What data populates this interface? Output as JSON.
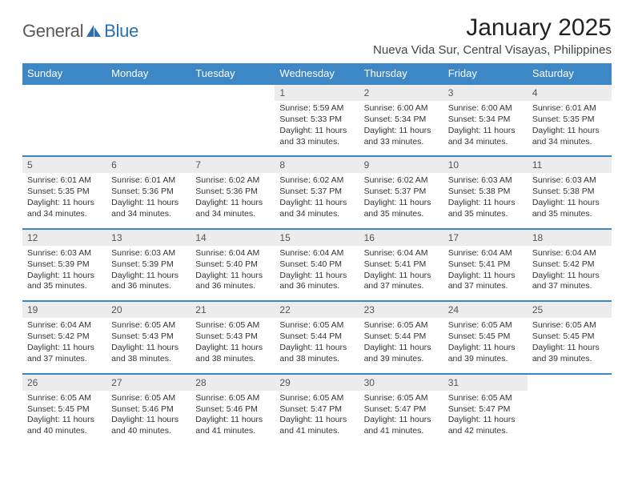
{
  "logo": {
    "word1": "General",
    "word2": "Blue",
    "color": "#2b6fb0"
  },
  "header": {
    "title": "January 2025",
    "subtitle": "Nueva Vida Sur, Central Visayas, Philippines"
  },
  "theme": {
    "header_bg": "#3d87c7",
    "header_text": "#ffffff",
    "row_sep": "#3d87c7",
    "daynum_bg": "#ececec",
    "body_text": "#333333"
  },
  "dayNames": [
    "Sunday",
    "Monday",
    "Tuesday",
    "Wednesday",
    "Thursday",
    "Friday",
    "Saturday"
  ],
  "table": {
    "font_size_body": 10.5,
    "font_size_header": 13,
    "font_size_daynum": 12
  },
  "weeks": [
    [
      {
        "empty": true
      },
      {
        "empty": true
      },
      {
        "empty": true
      },
      {
        "n": "1",
        "sunrise": "5:59 AM",
        "sunset": "5:33 PM",
        "daylight": "11 hours and 33 minutes."
      },
      {
        "n": "2",
        "sunrise": "6:00 AM",
        "sunset": "5:34 PM",
        "daylight": "11 hours and 33 minutes."
      },
      {
        "n": "3",
        "sunrise": "6:00 AM",
        "sunset": "5:34 PM",
        "daylight": "11 hours and 34 minutes."
      },
      {
        "n": "4",
        "sunrise": "6:01 AM",
        "sunset": "5:35 PM",
        "daylight": "11 hours and 34 minutes."
      }
    ],
    [
      {
        "n": "5",
        "sunrise": "6:01 AM",
        "sunset": "5:35 PM",
        "daylight": "11 hours and 34 minutes."
      },
      {
        "n": "6",
        "sunrise": "6:01 AM",
        "sunset": "5:36 PM",
        "daylight": "11 hours and 34 minutes."
      },
      {
        "n": "7",
        "sunrise": "6:02 AM",
        "sunset": "5:36 PM",
        "daylight": "11 hours and 34 minutes."
      },
      {
        "n": "8",
        "sunrise": "6:02 AM",
        "sunset": "5:37 PM",
        "daylight": "11 hours and 34 minutes."
      },
      {
        "n": "9",
        "sunrise": "6:02 AM",
        "sunset": "5:37 PM",
        "daylight": "11 hours and 35 minutes."
      },
      {
        "n": "10",
        "sunrise": "6:03 AM",
        "sunset": "5:38 PM",
        "daylight": "11 hours and 35 minutes."
      },
      {
        "n": "11",
        "sunrise": "6:03 AM",
        "sunset": "5:38 PM",
        "daylight": "11 hours and 35 minutes."
      }
    ],
    [
      {
        "n": "12",
        "sunrise": "6:03 AM",
        "sunset": "5:39 PM",
        "daylight": "11 hours and 35 minutes."
      },
      {
        "n": "13",
        "sunrise": "6:03 AM",
        "sunset": "5:39 PM",
        "daylight": "11 hours and 36 minutes."
      },
      {
        "n": "14",
        "sunrise": "6:04 AM",
        "sunset": "5:40 PM",
        "daylight": "11 hours and 36 minutes."
      },
      {
        "n": "15",
        "sunrise": "6:04 AM",
        "sunset": "5:40 PM",
        "daylight": "11 hours and 36 minutes."
      },
      {
        "n": "16",
        "sunrise": "6:04 AM",
        "sunset": "5:41 PM",
        "daylight": "11 hours and 37 minutes."
      },
      {
        "n": "17",
        "sunrise": "6:04 AM",
        "sunset": "5:41 PM",
        "daylight": "11 hours and 37 minutes."
      },
      {
        "n": "18",
        "sunrise": "6:04 AM",
        "sunset": "5:42 PM",
        "daylight": "11 hours and 37 minutes."
      }
    ],
    [
      {
        "n": "19",
        "sunrise": "6:04 AM",
        "sunset": "5:42 PM",
        "daylight": "11 hours and 37 minutes."
      },
      {
        "n": "20",
        "sunrise": "6:05 AM",
        "sunset": "5:43 PM",
        "daylight": "11 hours and 38 minutes."
      },
      {
        "n": "21",
        "sunrise": "6:05 AM",
        "sunset": "5:43 PM",
        "daylight": "11 hours and 38 minutes."
      },
      {
        "n": "22",
        "sunrise": "6:05 AM",
        "sunset": "5:44 PM",
        "daylight": "11 hours and 38 minutes."
      },
      {
        "n": "23",
        "sunrise": "6:05 AM",
        "sunset": "5:44 PM",
        "daylight": "11 hours and 39 minutes."
      },
      {
        "n": "24",
        "sunrise": "6:05 AM",
        "sunset": "5:45 PM",
        "daylight": "11 hours and 39 minutes."
      },
      {
        "n": "25",
        "sunrise": "6:05 AM",
        "sunset": "5:45 PM",
        "daylight": "11 hours and 39 minutes."
      }
    ],
    [
      {
        "n": "26",
        "sunrise": "6:05 AM",
        "sunset": "5:45 PM",
        "daylight": "11 hours and 40 minutes."
      },
      {
        "n": "27",
        "sunrise": "6:05 AM",
        "sunset": "5:46 PM",
        "daylight": "11 hours and 40 minutes."
      },
      {
        "n": "28",
        "sunrise": "6:05 AM",
        "sunset": "5:46 PM",
        "daylight": "11 hours and 41 minutes."
      },
      {
        "n": "29",
        "sunrise": "6:05 AM",
        "sunset": "5:47 PM",
        "daylight": "11 hours and 41 minutes."
      },
      {
        "n": "30",
        "sunrise": "6:05 AM",
        "sunset": "5:47 PM",
        "daylight": "11 hours and 41 minutes."
      },
      {
        "n": "31",
        "sunrise": "6:05 AM",
        "sunset": "5:47 PM",
        "daylight": "11 hours and 42 minutes."
      },
      {
        "empty": true
      }
    ]
  ],
  "labels": {
    "sunrise": "Sunrise:",
    "sunset": "Sunset:",
    "daylight": "Daylight:"
  }
}
